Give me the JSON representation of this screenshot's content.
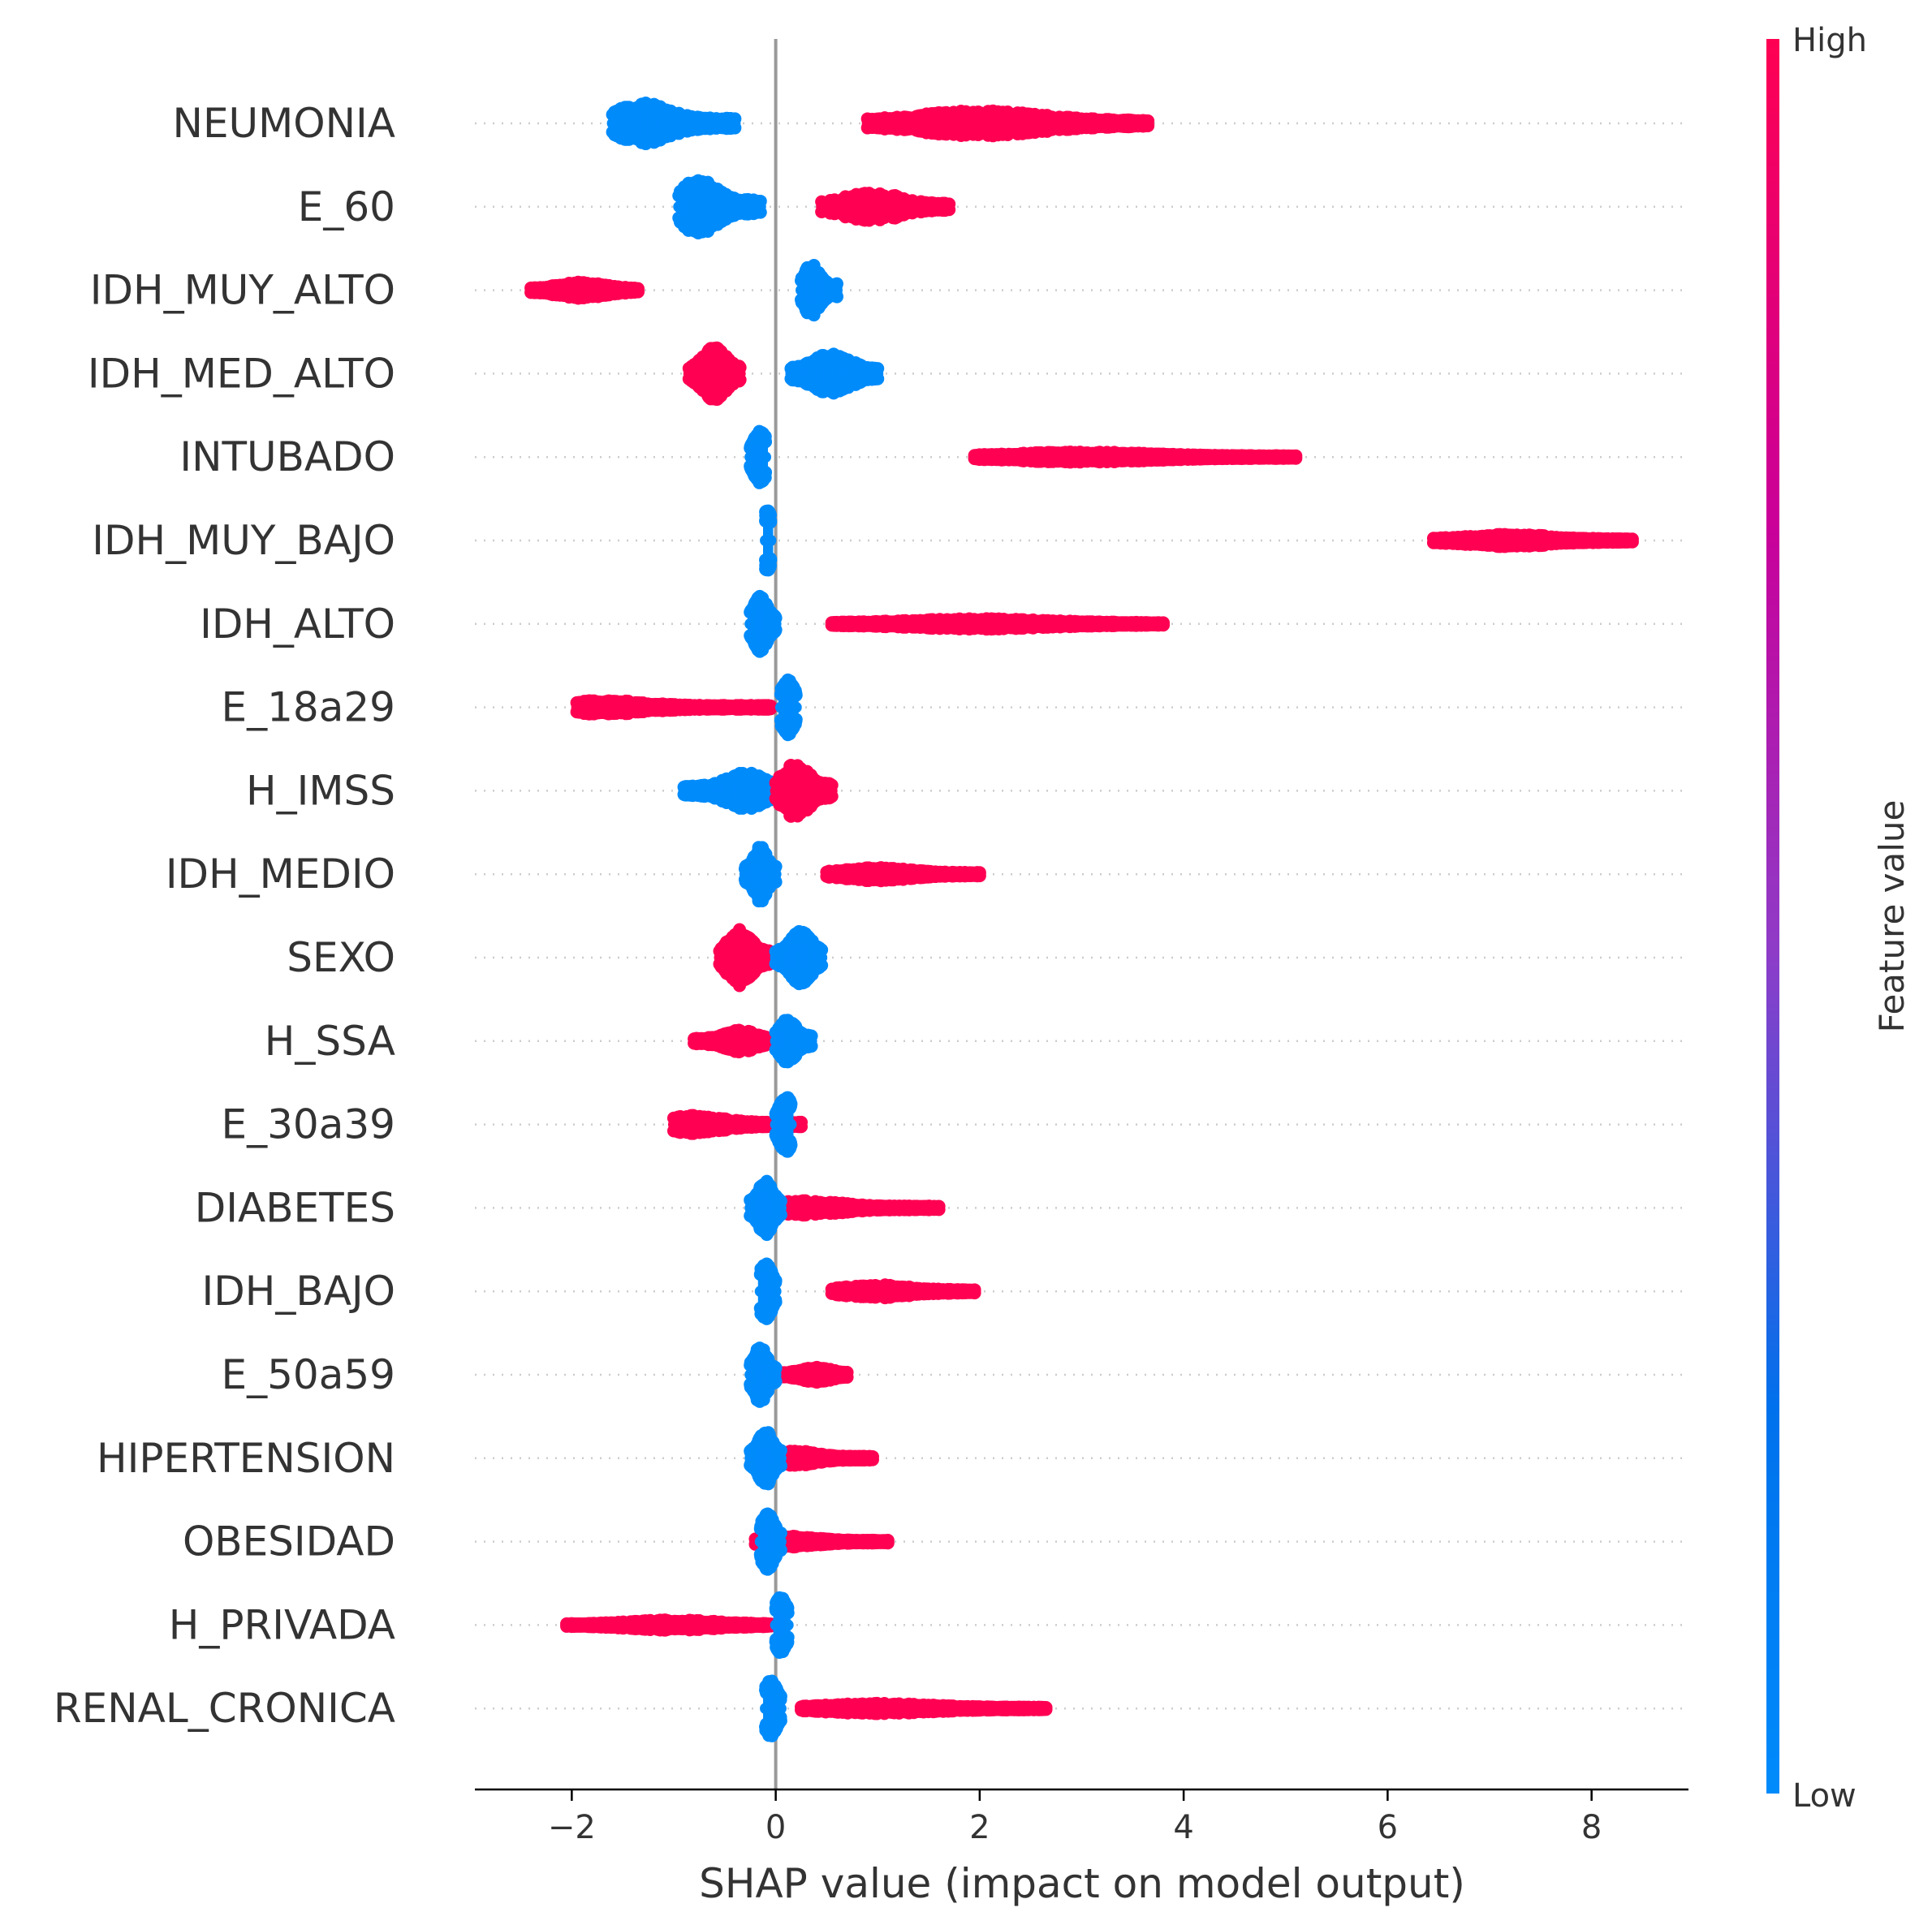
{
  "chart_data": {
    "type": "scatter",
    "subtype": "shap-beeswarm",
    "title": "",
    "xlabel": "SHAP value (impact on model output)",
    "ylabel": "",
    "xlim": [
      -2.95,
      8.95
    ],
    "xticks": [
      -2,
      0,
      2,
      4,
      6,
      8
    ],
    "xtick_labels": [
      "−2",
      "0",
      "2",
      "4",
      "6",
      "8"
    ],
    "grid": "dotted horizontal row guides",
    "colors": {
      "low": "#008bfb",
      "high": "#ff0052",
      "mid": "#bb0aa0",
      "zero_line": "#999999"
    },
    "colorbar": {
      "title": "Feature value",
      "high_label": "High",
      "low_label": "Low",
      "placement": "right"
    },
    "features": [
      {
        "name": "NEUMONIA",
        "low": {
          "min": -1.6,
          "max": -0.4,
          "center": -1.3,
          "spread": 0.55
        },
        "high": {
          "min": 0.9,
          "max": 3.65,
          "center": 2.0,
          "spread": 0.35
        }
      },
      {
        "name": "E_60",
        "low": {
          "min": -0.95,
          "max": -0.15,
          "center": -0.75,
          "spread": 0.75
        },
        "high": {
          "min": 0.45,
          "max": 1.7,
          "center": 0.95,
          "spread": 0.4
        }
      },
      {
        "name": "IDH_MUY_ALTO",
        "low": {
          "min": 0.25,
          "max": 0.6,
          "center": 0.35,
          "spread": 0.7
        },
        "high": {
          "min": -2.4,
          "max": -1.35,
          "center": -1.9,
          "spread": 0.22
        }
      },
      {
        "name": "IDH_MED_ALTO",
        "low": {
          "min": 0.15,
          "max": 1.0,
          "center": 0.55,
          "spread": 0.55
        },
        "high": {
          "min": -0.85,
          "max": -0.35,
          "center": -0.6,
          "spread": 0.75
        }
      },
      {
        "name": "INTUBADO",
        "low": {
          "min": -0.25,
          "max": -0.1,
          "center": -0.15,
          "spread": 0.7
        },
        "high": {
          "min": 1.95,
          "max": 5.1,
          "center": 3.0,
          "spread": 0.14
        }
      },
      {
        "name": "IDH_MUY_BAJO",
        "low": {
          "min": -0.1,
          "max": -0.05,
          "center": -0.08,
          "spread": 0.8
        },
        "high": {
          "min": 6.45,
          "max": 8.4,
          "center": 7.2,
          "spread": 0.17
        }
      },
      {
        "name": "IDH_ALTO",
        "low": {
          "min": -0.25,
          "max": 0.0,
          "center": -0.15,
          "spread": 0.75
        },
        "high": {
          "min": 0.55,
          "max": 3.8,
          "center": 2.0,
          "spread": 0.14
        }
      },
      {
        "name": "E_18a29",
        "low": {
          "min": 0.05,
          "max": 0.2,
          "center": 0.12,
          "spread": 0.75
        },
        "high": {
          "min": -1.95,
          "max": -0.05,
          "center": -1.7,
          "spread": 0.2
        }
      },
      {
        "name": "H_IMSS",
        "low": {
          "min": -0.9,
          "max": -0.05,
          "center": -0.3,
          "spread": 0.5
        },
        "high": {
          "min": 0.0,
          "max": 0.55,
          "center": 0.2,
          "spread": 0.75
        }
      },
      {
        "name": "IDH_MEDIO",
        "low": {
          "min": -0.3,
          "max": 0.0,
          "center": -0.15,
          "spread": 0.75
        },
        "high": {
          "min": 0.5,
          "max": 2.0,
          "center": 1.0,
          "spread": 0.18
        }
      },
      {
        "name": "SEXO",
        "low": {
          "min": 0.0,
          "max": 0.45,
          "center": 0.25,
          "spread": 0.75
        },
        "high": {
          "min": -0.55,
          "max": -0.05,
          "center": -0.35,
          "spread": 0.75
        }
      },
      {
        "name": "H_SSA",
        "low": {
          "min": 0.0,
          "max": 0.35,
          "center": 0.12,
          "spread": 0.6
        },
        "high": {
          "min": -0.8,
          "max": -0.1,
          "center": -0.35,
          "spread": 0.3
        }
      },
      {
        "name": "E_30a39",
        "low": {
          "min": 0.0,
          "max": 0.15,
          "center": 0.1,
          "spread": 0.75
        },
        "high": {
          "min": -1.0,
          "max": 0.25,
          "center": -0.8,
          "spread": 0.25
        }
      },
      {
        "name": "DIABETES",
        "low": {
          "min": -0.25,
          "max": 0.05,
          "center": -0.1,
          "spread": 0.75
        },
        "high": {
          "min": 0.05,
          "max": 1.6,
          "center": 0.3,
          "spread": 0.2
        }
      },
      {
        "name": "IDH_BAJO",
        "low": {
          "min": -0.15,
          "max": 0.0,
          "center": -0.1,
          "spread": 0.75
        },
        "high": {
          "min": 0.55,
          "max": 1.95,
          "center": 1.0,
          "spread": 0.18
        }
      },
      {
        "name": "E_50a59",
        "low": {
          "min": -0.25,
          "max": 0.0,
          "center": -0.15,
          "spread": 0.75
        },
        "high": {
          "min": 0.0,
          "max": 0.7,
          "center": 0.4,
          "spread": 0.2
        }
      },
      {
        "name": "HIPERTENSION",
        "low": {
          "min": -0.25,
          "max": 0.05,
          "center": -0.1,
          "spread": 0.75
        },
        "high": {
          "min": 0.05,
          "max": 0.95,
          "center": 0.2,
          "spread": 0.2
        }
      },
      {
        "name": "OBESIDAD",
        "low": {
          "min": -0.15,
          "max": 0.05,
          "center": -0.08,
          "spread": 0.75
        },
        "high": {
          "min": -0.2,
          "max": 1.1,
          "center": 0.1,
          "spread": 0.15
        }
      },
      {
        "name": "H_PRIVADA",
        "low": {
          "min": 0.0,
          "max": 0.12,
          "center": 0.05,
          "spread": 0.75
        },
        "high": {
          "min": -2.05,
          "max": -0.05,
          "center": -1.0,
          "spread": 0.14
        }
      },
      {
        "name": "RENAL_CRONICA",
        "low": {
          "min": -0.1,
          "max": 0.05,
          "center": -0.05,
          "spread": 0.75
        },
        "high": {
          "min": 0.25,
          "max": 2.65,
          "center": 1.0,
          "spread": 0.14
        }
      }
    ]
  }
}
